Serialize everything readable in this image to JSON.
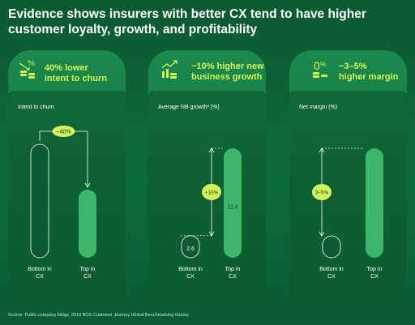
{
  "title": "Evidence shows insurers with better CX tend to have higher customer loyalty, growth, and profitability",
  "source": "Source: Public company filings, 2019 BCG Customer Journey Global Benchmarking Survey",
  "colors": {
    "accent": "#d6f25a",
    "bar_dark": "#0d5a32",
    "bar_light": "#3cb769"
  },
  "panels": [
    {
      "headline_1": "40% lower",
      "headline_2": "intent to churn",
      "icon": "percent-coins-down-icon"
    },
    {
      "headline_1": "~10% higher new",
      "headline_2": "business growth",
      "icon": "growth-chart-coins-icon"
    },
    {
      "headline_1": "~3–5%",
      "headline_2": "higher margin",
      "icon": "percent-coins-icon"
    }
  ],
  "chart_data": [
    {
      "type": "bar",
      "ylabel": "Intent to churn",
      "categories": [
        "Bottom in CX",
        "Top in CX"
      ],
      "values": [
        100,
        60
      ],
      "value_labels": [
        "",
        ""
      ],
      "annotation": "–40%"
    },
    {
      "type": "bar",
      "ylabel": "Average NB growth² (%)",
      "categories": [
        "Bottom in CX",
        "Top in CX"
      ],
      "values": [
        2.6,
        12.9
      ],
      "value_labels": [
        "2.6",
        "12.9"
      ],
      "annotation": "+10%"
    },
    {
      "type": "bar",
      "ylabel": "Net margin (%)",
      "categories": [
        "Bottom in CX",
        "Top in CX"
      ],
      "values": [
        1,
        5
      ],
      "value_labels": [
        "",
        ""
      ],
      "annotation": "3–5%"
    }
  ]
}
